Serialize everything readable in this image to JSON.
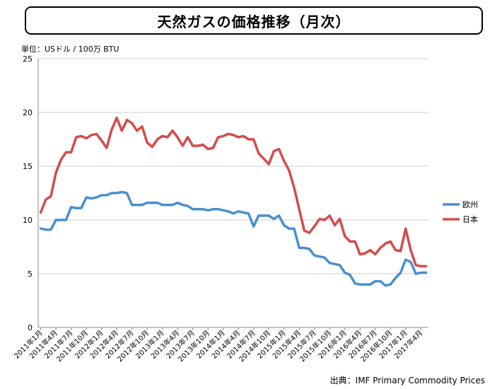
{
  "header": {
    "title": "天然ガスの価格推移（月次）"
  },
  "unit_label": "単位：USドル / 100万 BTU",
  "source_label": "出典：IMF Primary Commodity Prices",
  "colors": {
    "europe": "#4a8fcf",
    "japan": "#d34c4b",
    "grid": "#cfcfcf",
    "axis": "#8a8a8a"
  },
  "chart_data": {
    "type": "line",
    "title": "天然ガスの価格推移（月次）",
    "ylabel": "単位：USドル / 100万 BTU",
    "xlabel": "",
    "ylim": [
      0,
      25
    ],
    "yticks": [
      "0",
      "5",
      "10",
      "15",
      "20",
      "25"
    ],
    "grid": true,
    "legend_position": "right",
    "xtick_labels": [
      "2011年1月",
      "2011年4月",
      "2011年7月",
      "2011年10月",
      "2012年1月",
      "2012年4月",
      "2012年7月",
      "2012年10月",
      "2013年1月",
      "2013年4月",
      "2013年7月",
      "2013年10月",
      "2014年1月",
      "2014年4月",
      "2014年7月",
      "2014年10月",
      "2015年1月",
      "2015年4月",
      "2015年7月",
      "2015年10月",
      "2016年1月",
      "2016年4月",
      "2016年7月",
      "2016年10月",
      "2017年1月",
      "2017年4月"
    ],
    "series": [
      {
        "name": "欧州",
        "color": "#4a8fcf",
        "values": [
          9.2,
          9.1,
          9.1,
          10.0,
          10.0,
          10.0,
          11.2,
          11.1,
          11.1,
          12.1,
          12.0,
          12.1,
          12.3,
          12.3,
          12.5,
          12.5,
          12.6,
          12.5,
          11.4,
          11.4,
          11.4,
          11.6,
          11.6,
          11.6,
          11.4,
          11.4,
          11.4,
          11.6,
          11.4,
          11.3,
          11.0,
          11.0,
          11.0,
          10.9,
          11.0,
          11.0,
          10.9,
          10.8,
          10.6,
          10.8,
          10.7,
          10.6,
          9.4,
          10.4,
          10.4,
          10.4,
          10.1,
          10.4,
          9.5,
          9.2,
          9.2,
          7.4,
          7.4,
          7.3,
          6.7,
          6.6,
          6.5,
          6.0,
          5.9,
          5.8,
          5.1,
          4.9,
          4.1,
          4.0,
          4.0,
          4.0,
          4.3,
          4.3,
          3.9,
          4.0,
          4.6,
          5.1,
          6.3,
          6.1,
          5.0,
          5.1,
          5.1
        ]
      },
      {
        "name": "日本",
        "color": "#d34c4b",
        "values": [
          10.7,
          11.9,
          12.2,
          14.4,
          15.6,
          16.3,
          16.3,
          17.7,
          17.8,
          17.6,
          17.9,
          18.0,
          17.4,
          16.7,
          18.4,
          19.5,
          18.3,
          19.3,
          19.0,
          18.3,
          18.7,
          17.2,
          16.8,
          17.5,
          17.8,
          17.7,
          18.3,
          17.7,
          16.9,
          17.7,
          16.9,
          16.9,
          17.0,
          16.6,
          16.7,
          17.7,
          17.8,
          18.0,
          17.9,
          17.7,
          17.8,
          17.5,
          17.5,
          16.2,
          15.7,
          15.2,
          16.4,
          16.6,
          15.5,
          14.6,
          13.0,
          11.0,
          9.0,
          8.8,
          9.4,
          10.1,
          10.0,
          10.4,
          9.5,
          10.1,
          8.5,
          8.0,
          8.0,
          6.8,
          6.9,
          7.2,
          6.8,
          7.4,
          7.8,
          8.0,
          7.2,
          7.1,
          9.2,
          7.2,
          5.8,
          5.7,
          5.7
        ]
      }
    ]
  }
}
